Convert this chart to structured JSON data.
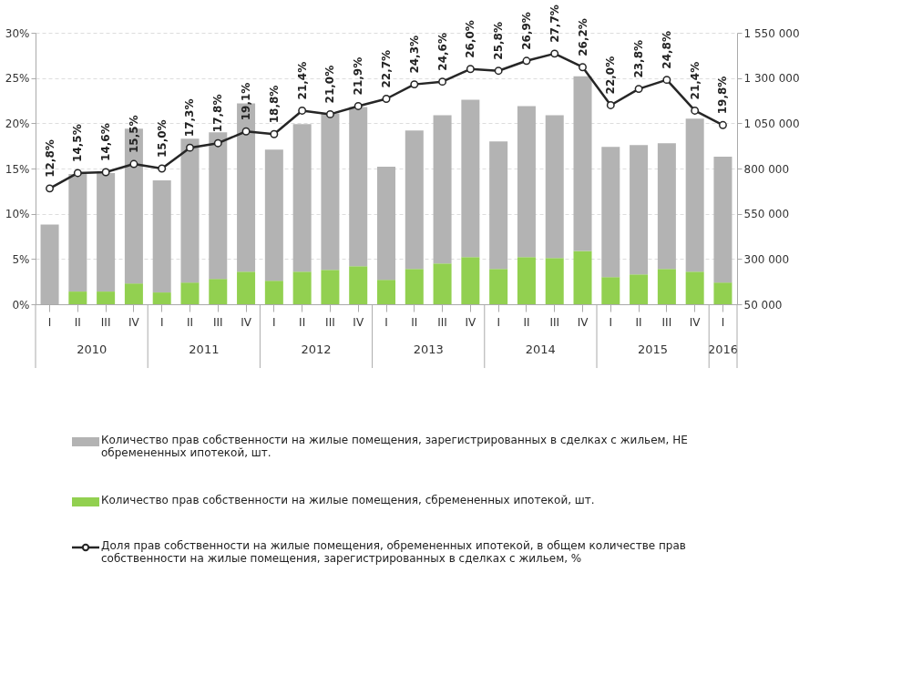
{
  "chart_data": {
    "type": "bar",
    "stacked": true,
    "categories": [
      "I",
      "II",
      "III",
      "IV",
      "I",
      "II",
      "III",
      "IV",
      "I",
      "II",
      "III",
      "IV",
      "I",
      "II",
      "III",
      "IV",
      "I",
      "II",
      "III",
      "IV",
      "I",
      "II",
      "III",
      "IV",
      "I"
    ],
    "series": [
      {
        "name": "Количество прав собственности на жилые помещения, сбремененных ипотекой, шт.",
        "axis": "y2",
        "color": "#92d050",
        "values": [
          null,
          120000,
          120000,
          165000,
          115000,
          170000,
          190000,
          230000,
          180000,
          230000,
          240000,
          260000,
          185000,
          245000,
          275000,
          310000,
          245000,
          310000,
          305000,
          345000,
          200000,
          215000,
          245000,
          230000,
          170000
        ]
      },
      {
        "name": "Количество прав собственности на жилые помещения, зарегистрированных в сделках с жильем, НЕ обремененных ипотекой, шт.",
        "axis": "y2",
        "color": "#b3b3b3",
        "values": [
          490000,
          650000,
          655000,
          855000,
          620000,
          795000,
          810000,
          930000,
          725000,
          815000,
          865000,
          880000,
          625000,
          765000,
          820000,
          870000,
          705000,
          835000,
          790000,
          965000,
          720000,
          715000,
          695000,
          845000,
          695000
        ]
      },
      {
        "name": "Доля прав собственности на жилые помещения, обремененных ипотекой, в общем количестве прав собственности на жилые помещения, зарегистрированных в сделках с жильем, %",
        "type": "line",
        "axis": "y",
        "color": "#262626",
        "marker": "circle",
        "line_style": "solid",
        "values": [
          12.8,
          14.5,
          14.6,
          15.5,
          15.0,
          17.3,
          17.8,
          19.1,
          18.8,
          21.4,
          21.0,
          21.9,
          22.7,
          24.3,
          24.6,
          26.0,
          25.8,
          26.9,
          27.7,
          26.2,
          22.0,
          23.8,
          24.8,
          21.4,
          19.8
        ],
        "value_labels": [
          "12,8%",
          "14,5%",
          "14,6%",
          "15,5%",
          "15,0%",
          "17,3%",
          "17,8%",
          "19,1%",
          "18,8%",
          "21,4%",
          "21,0%",
          "21,9%",
          "22,7%",
          "24,3%",
          "24,6%",
          "26,0%",
          "25,8%",
          "26,9%",
          "27,7%",
          "26,2%",
          "22,0%",
          "23,8%",
          "24,8%",
          "21,4%",
          "19,8%"
        ]
      }
    ],
    "ylim": [
      0,
      30
    ],
    "yticks": [
      {
        "value": 0,
        "label": "0%"
      },
      {
        "value": 5,
        "label": "5%"
      },
      {
        "value": 10,
        "label": "10%"
      },
      {
        "value": 15,
        "label": "15%"
      },
      {
        "value": 20,
        "label": "20%"
      },
      {
        "value": 25,
        "label": "25%"
      },
      {
        "value": 30,
        "label": "30%"
      }
    ],
    "y2lim": [
      50000,
      1550000
    ],
    "y2ticks": [
      {
        "value": 50000,
        "label": "50 000"
      },
      {
        "value": 300000,
        "label": "300 000"
      },
      {
        "value": 550000,
        "label": "550 000"
      },
      {
        "value": 800000,
        "label": "800 000"
      },
      {
        "value": 1050000,
        "label": "1 050 000"
      },
      {
        "value": 1300000,
        "label": "1 300 000"
      },
      {
        "value": 1550000,
        "label": "1 550 000"
      }
    ],
    "annotations": [
      "2010",
      "2011",
      "2012",
      "2013",
      "2014",
      "2015",
      "2016"
    ],
    "grid": "y",
    "legend": "bottom"
  }
}
